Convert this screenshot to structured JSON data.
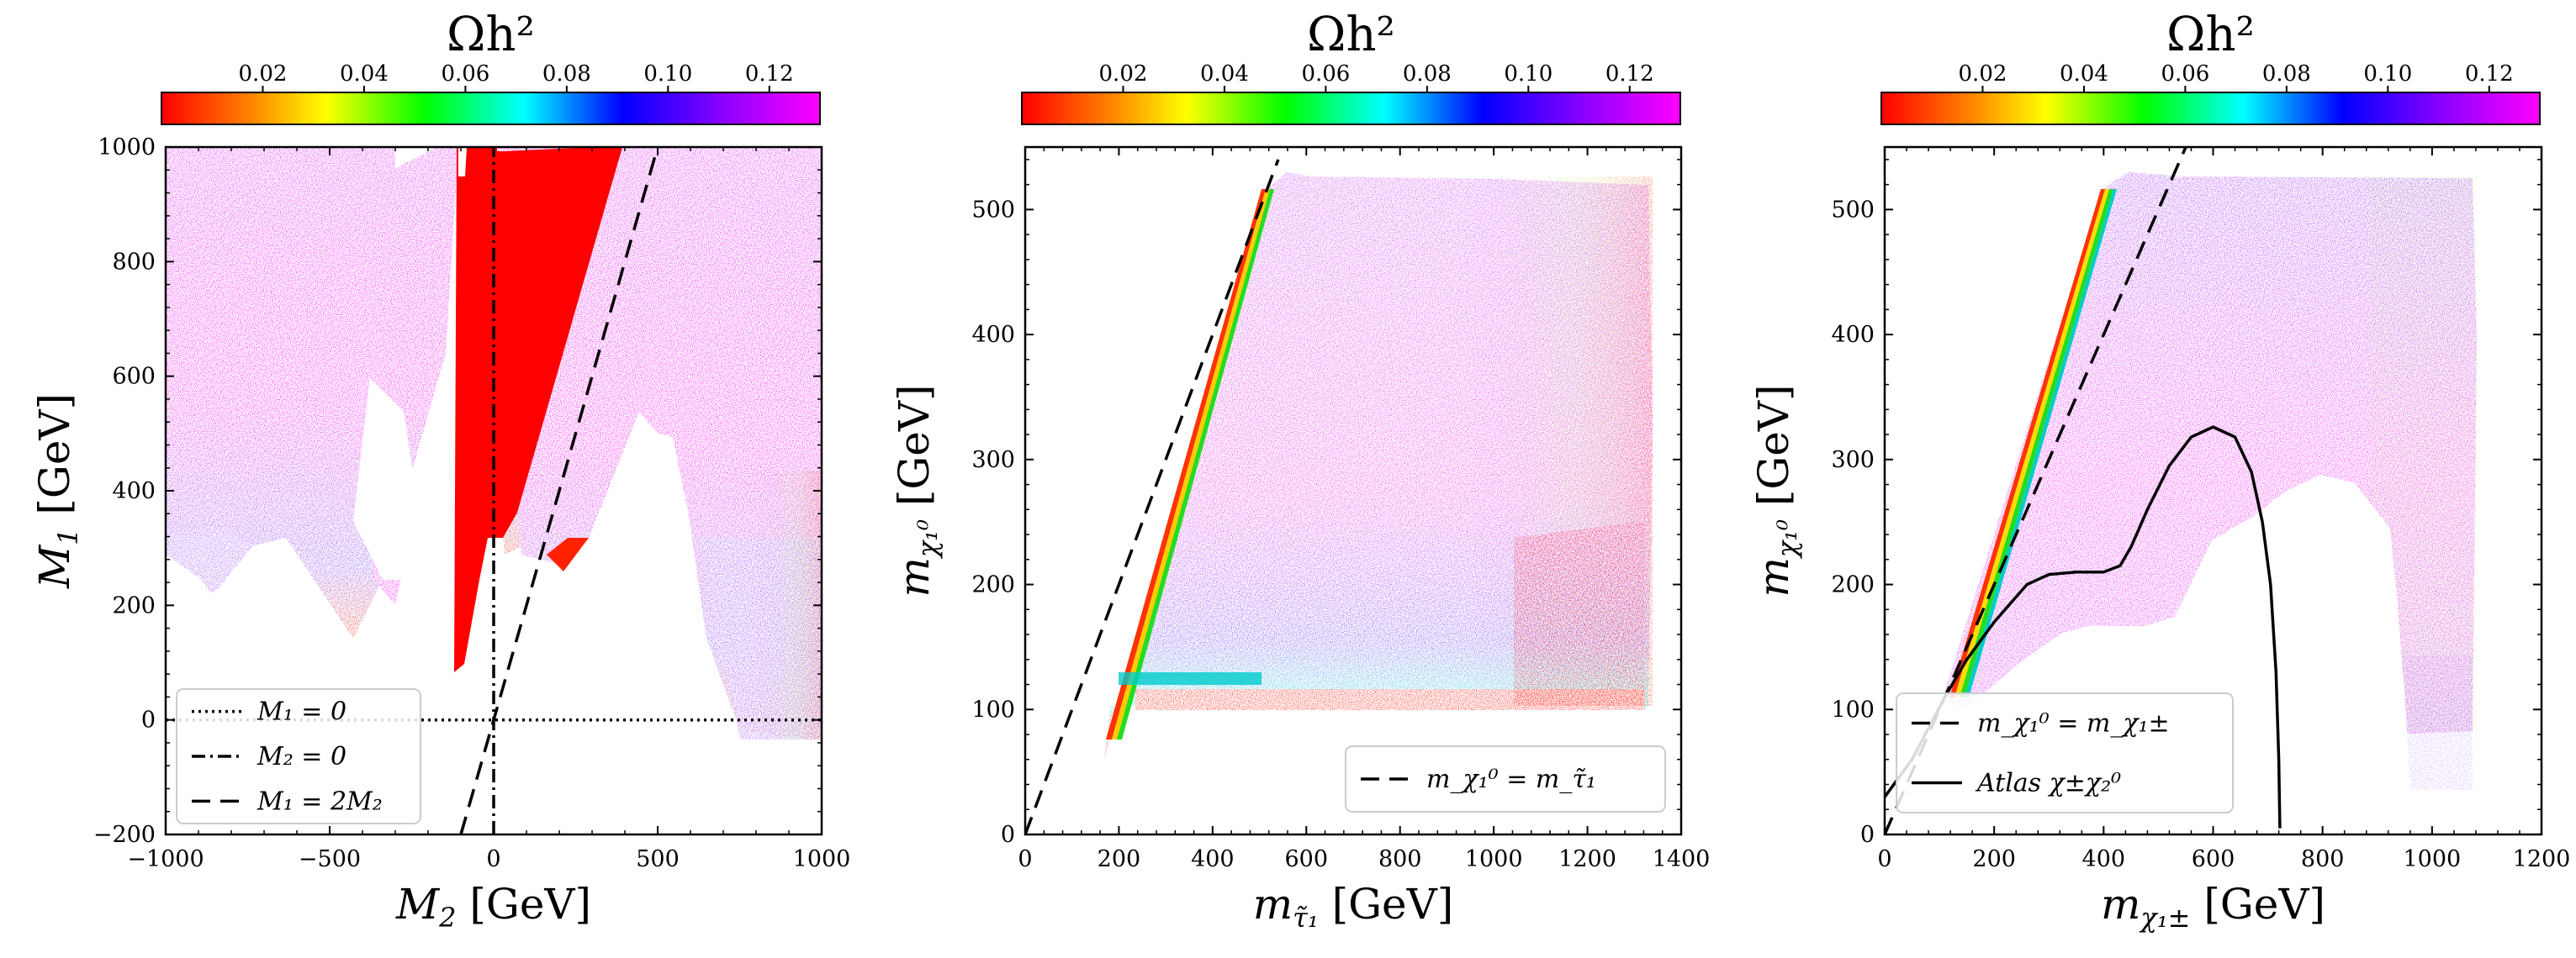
{
  "colorbar": {
    "title": "Ωh²",
    "ticks": [
      "0.02",
      "0.04",
      "0.06",
      "0.08",
      "0.10",
      "0.12"
    ],
    "tick_values": [
      0.02,
      0.04,
      0.06,
      0.08,
      0.1,
      0.12
    ],
    "range": [
      0.0,
      0.13
    ],
    "colors": [
      "#ff0000",
      "#ff8800",
      "#ffff00",
      "#00ff00",
      "#00ffff",
      "#0000ff",
      "#8800ff",
      "#ff00ff"
    ]
  },
  "chart_data": [
    {
      "type": "scatter",
      "title": "",
      "xlabel": "M₂ [GeV]",
      "ylabel": "M₁ [GeV]",
      "xlim": [
        -1000,
        1000
      ],
      "ylim": [
        -200,
        1000
      ],
      "xticks": [
        "−1000",
        "−500",
        "0",
        "500",
        "1000"
      ],
      "yticks": [
        "−200",
        "0",
        "200",
        "400",
        "600",
        "800",
        "1000"
      ],
      "color_by": "Ωh²",
      "lines": [
        {
          "label": "M₁ = 0",
          "style": "dotted",
          "x": [
            -1000,
            1000
          ],
          "y": [
            0,
            0
          ]
        },
        {
          "label": "M₂ = 0",
          "style": "dashdot",
          "x": [
            0,
            0
          ],
          "y": [
            -200,
            1000
          ]
        },
        {
          "label": "M₁ = 2M₂",
          "style": "dashed",
          "x": [
            -100,
            500
          ],
          "y": [
            -200,
            1000
          ]
        }
      ],
      "legend": {
        "placement": "bottom-left",
        "entries": [
          "M₁ = 0",
          "M₂ = 0",
          "M₁ = 2M₂"
        ]
      }
    },
    {
      "type": "scatter",
      "title": "",
      "xlabel": "m_τ̃₁ [GeV]",
      "ylabel": "m_χ₁⁰ [GeV]",
      "xlim": [
        0,
        1400
      ],
      "ylim": [
        0,
        550
      ],
      "xticks": [
        "0",
        "200",
        "400",
        "600",
        "800",
        "1000",
        "1200",
        "1400"
      ],
      "yticks": [
        "0",
        "100",
        "200",
        "300",
        "400",
        "500"
      ],
      "color_by": "Ωh²",
      "lines": [
        {
          "label": "m_χ₁⁰ = m_τ̃₁",
          "style": "dashed",
          "x": [
            0,
            540
          ],
          "y": [
            0,
            540
          ]
        }
      ],
      "legend": {
        "placement": "bottom-right",
        "entries": [
          "m_χ₁⁰ = m_τ̃₁"
        ]
      }
    },
    {
      "type": "scatter",
      "title": "",
      "xlabel": "m_χ₁± [GeV]",
      "ylabel": "m_χ₁⁰ [GeV]",
      "xlim": [
        0,
        1200
      ],
      "ylim": [
        0,
        550
      ],
      "xticks": [
        "0",
        "200",
        "400",
        "600",
        "800",
        "1000",
        "1200"
      ],
      "yticks": [
        "0",
        "100",
        "200",
        "300",
        "400",
        "500"
      ],
      "color_by": "Ωh²",
      "lines": [
        {
          "label": "m_χ₁⁰ = m_χ₁±",
          "style": "dashed",
          "x": [
            0,
            550
          ],
          "y": [
            0,
            550
          ]
        },
        {
          "label": "Atlas χ±χ₂⁰",
          "style": "solid",
          "x": [
            0,
            50,
            110,
            150,
            200,
            260,
            300,
            350,
            400,
            430,
            450,
            480,
            520,
            560,
            600,
            640,
            670,
            690,
            705,
            715,
            720,
            722
          ],
          "y": [
            30,
            60,
            110,
            140,
            170,
            200,
            208,
            210,
            210,
            215,
            230,
            260,
            295,
            318,
            326,
            318,
            290,
            250,
            200,
            130,
            60,
            5
          ]
        }
      ],
      "legend": {
        "placement": "bottom-left",
        "entries": [
          "m_χ₁⁰ = m_χ₁±",
          "Atlas χ±χ₂⁰"
        ]
      }
    }
  ],
  "panels": [
    {
      "cb_title": "Ωh²",
      "xlabel_main": "M",
      "xlabel_sub": "2",
      "xlabel_unit": " [GeV]",
      "ylabel_main": "M",
      "ylabel_sub": "1",
      "ylabel_unit": " [GeV]",
      "legend": [
        "M₁ = 0",
        "M₂ = 0",
        "M₁ = 2M₂"
      ]
    },
    {
      "cb_title": "Ωh²",
      "xlabel_main": "m",
      "xlabel_sub": "τ̃₁",
      "xlabel_unit": " [GeV]",
      "ylabel_main": "m",
      "ylabel_sub": "χ₁⁰",
      "ylabel_unit": " [GeV]",
      "legend": [
        "m_χ₁⁰ = m_τ̃₁"
      ]
    },
    {
      "cb_title": "Ωh²",
      "xlabel_main": "m",
      "xlabel_sub": "χ₁±",
      "xlabel_unit": " [GeV]",
      "ylabel_main": "m",
      "ylabel_sub": "χ₁⁰",
      "ylabel_unit": " [GeV]",
      "legend": [
        "m_χ₁⁰ = m_χ₁±",
        "Atlas χ±χ₂⁰"
      ]
    }
  ]
}
